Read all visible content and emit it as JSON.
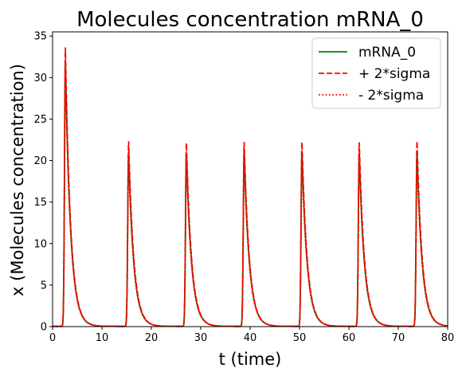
{
  "chart_data": {
    "type": "line",
    "title": "Molecules concentration mRNA_0",
    "xlabel": "t (time)",
    "ylabel": "x (Molecules concentration)",
    "xlim": [
      0,
      80
    ],
    "ylim": [
      0,
      35.5
    ],
    "xticks": [
      0,
      10,
      20,
      30,
      40,
      50,
      60,
      70,
      80
    ],
    "yticks": [
      0,
      5,
      10,
      15,
      20,
      25,
      30,
      35
    ],
    "grid": false,
    "legend_position": "top-right",
    "peaks": [
      {
        "t": 2.6,
        "mean": 32.0,
        "upper": 33.6,
        "lower": 31.0
      },
      {
        "t": 15.4,
        "mean": 21.0,
        "upper": 22.3,
        "lower": 20.0
      },
      {
        "t": 27.1,
        "mean": 21.0,
        "upper": 22.2,
        "lower": 20.0
      },
      {
        "t": 38.8,
        "mean": 21.2,
        "upper": 22.2,
        "lower": 20.2
      },
      {
        "t": 50.5,
        "mean": 21.2,
        "upper": 22.3,
        "lower": 20.2
      },
      {
        "t": 62.1,
        "mean": 21.0,
        "upper": 22.3,
        "lower": 20.2
      },
      {
        "t": 73.8,
        "mean": 21.0,
        "upper": 22.3,
        "lower": 20.2
      }
    ],
    "series": [
      {
        "name": "mRNA_0",
        "color": "#008000",
        "style": "solid"
      },
      {
        "name": "+ 2*sigma",
        "color": "#ff0000",
        "style": "dashed"
      },
      {
        "name": "- 2*sigma",
        "color": "#ff0000",
        "style": "dotted"
      }
    ]
  }
}
